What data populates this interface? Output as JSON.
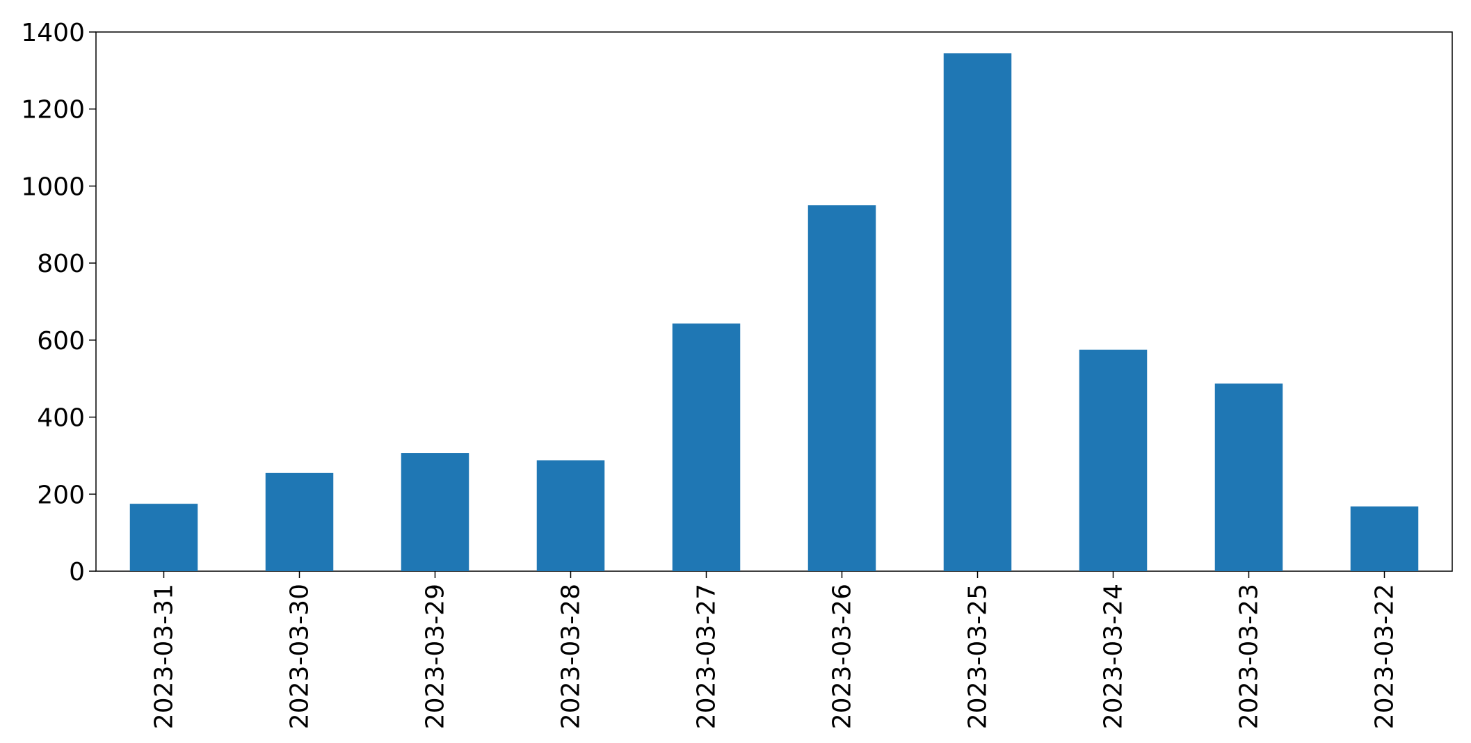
{
  "chart_data": {
    "type": "bar",
    "categories": [
      "2023-03-31",
      "2023-03-30",
      "2023-03-29",
      "2023-03-28",
      "2023-03-27",
      "2023-03-26",
      "2023-03-25",
      "2023-03-24",
      "2023-03-23",
      "2023-03-22"
    ],
    "series": [
      {
        "values": [
          175,
          255,
          307,
          288,
          643,
          950,
          1345,
          575,
          487,
          168
        ],
        "color": "#1f77b4"
      }
    ],
    "title": "",
    "xlabel": "",
    "ylabel": "",
    "ylim": [
      0,
      1400
    ],
    "yticks": [
      0,
      200,
      400,
      600,
      800,
      1000,
      1200,
      1400
    ],
    "xlabel_rotation": 90,
    "grid": false,
    "legend": "none"
  }
}
